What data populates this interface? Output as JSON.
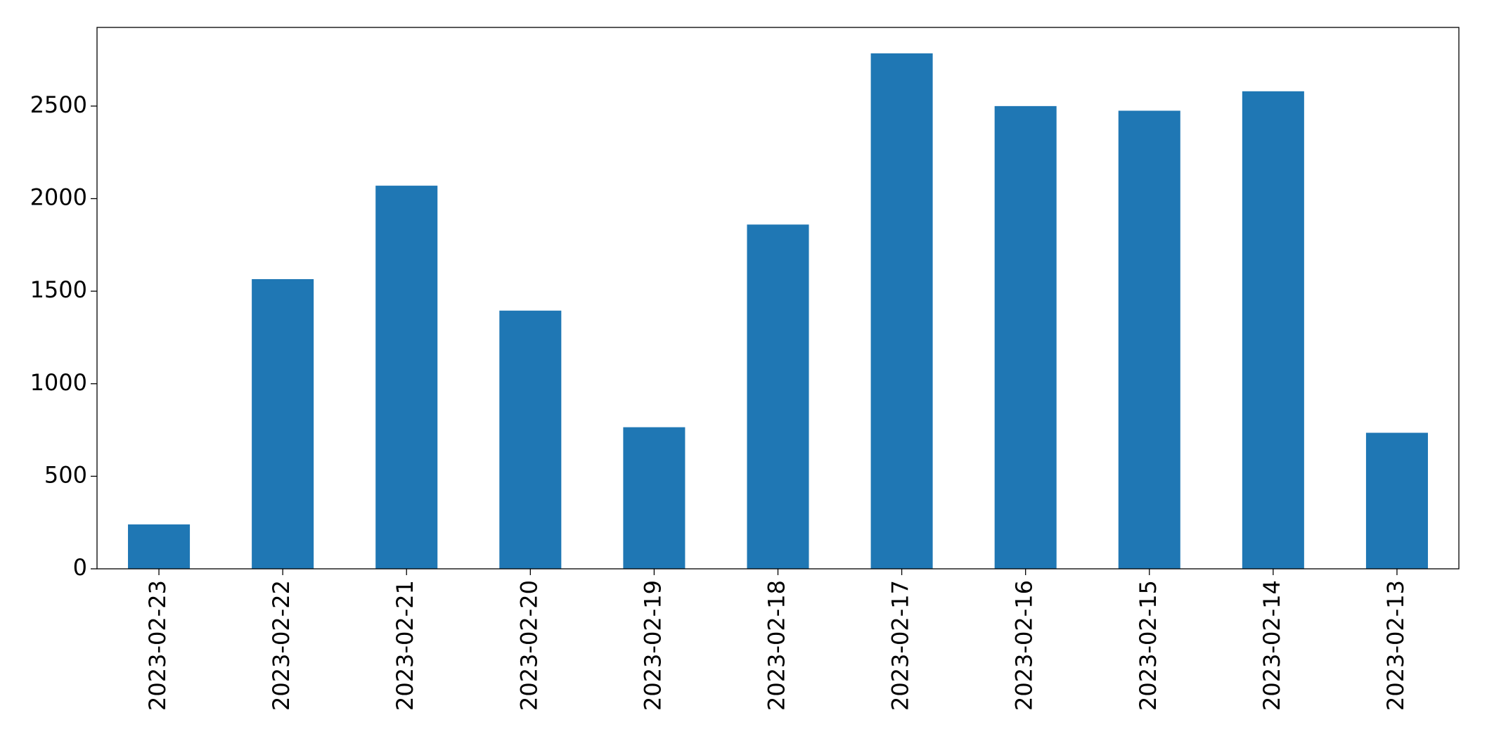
{
  "chart_data": {
    "type": "bar",
    "categories": [
      "2023-02-23",
      "2023-02-22",
      "2023-02-21",
      "2023-02-20",
      "2023-02-19",
      "2023-02-18",
      "2023-02-17",
      "2023-02-16",
      "2023-02-15",
      "2023-02-14",
      "2023-02-13"
    ],
    "values": [
      240,
      1565,
      2070,
      1395,
      765,
      1860,
      2785,
      2500,
      2475,
      2580,
      735
    ],
    "color": "#1f77b4",
    "ylim": [
      0,
      2925
    ],
    "yticks": [
      0,
      500,
      1000,
      1500,
      2000,
      2500
    ],
    "grid": false
  }
}
